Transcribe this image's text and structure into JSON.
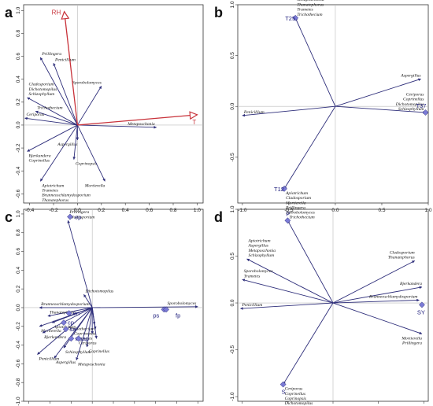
{
  "chart_data": [
    {
      "type": "scatter",
      "panel": "a",
      "xlim": [
        -0.45,
        1.05
      ],
      "ylim": [
        -0.68,
        1.05
      ],
      "xticks": [
        -0.4,
        -0.2,
        0.0,
        0.2,
        0.4,
        0.6,
        0.8,
        1.0
      ],
      "yticks": [
        -0.6,
        -0.4,
        -0.2,
        0.0,
        0.2,
        0.4,
        0.6,
        0.8,
        1.0
      ],
      "arrows": [
        {
          "label": "Penicillium",
          "x": -0.2,
          "y": 0.54
        },
        {
          "label": "Prillingera",
          "x": -0.31,
          "y": 0.59
        },
        {
          "label": "Sporobolomyces",
          "x": 0.2,
          "y": 0.34
        },
        {
          "label": "Cladosporium\nDichotomopilus\nSchizophyllum",
          "x": -0.42,
          "y": 0.24
        },
        {
          "label": "Trichothecium",
          "x": -0.35,
          "y": 0.12
        },
        {
          "label": "Ceriporus",
          "x": -0.44,
          "y": 0.06
        },
        {
          "label": "Metaposchonia",
          "x": 0.66,
          "y": -0.02
        },
        {
          "label": "Aspergillus",
          "x": 0.0,
          "y": -0.13
        },
        {
          "label": "Bjerkandera\nCoprinellus",
          "x": -0.42,
          "y": -0.23
        },
        {
          "label": "Coprinopsis",
          "x": -0.03,
          "y": -0.3
        },
        {
          "label": "Mortierella",
          "x": 0.23,
          "y": -0.49
        },
        {
          "label": "Apiotrichum\nTrametes\nBrunneoschlamydosporium\nThanatephorus",
          "x": -0.31,
          "y": -0.49
        }
      ],
      "env_arrows": [
        {
          "label": "RH",
          "x": -0.11,
          "y": 0.99
        },
        {
          "label": "T",
          "x": 1.0,
          "y": 0.09
        }
      ]
    },
    {
      "type": "scatter",
      "panel": "b",
      "xlim": [
        -1.05,
        1.0
      ],
      "ylim": [
        -0.95,
        1.0
      ],
      "xticks": [
        -1.0,
        -0.5,
        0.0,
        0.5,
        1.0
      ],
      "yticks": [
        -1.0,
        -0.5,
        0.0,
        0.5,
        1.0
      ],
      "points": [
        {
          "label": "T25",
          "x": -0.43,
          "y": 0.87
        },
        {
          "label": "T37",
          "x": 0.97,
          "y": -0.06
        },
        {
          "label": "T12",
          "x": -0.55,
          "y": -0.81
        }
      ],
      "arrows": [
        {
          "label": "Bjerkandera\nBrunneoschlamydosporium\nCoprinopsis\nMetaposchonia\nThanatephorus\nTrametes\nTrichothecium",
          "x": -0.43,
          "y": 0.87
        },
        {
          "label": "Aspergillus",
          "x": 0.92,
          "y": 0.27
        },
        {
          "label": "Penicillium",
          "x": -1.0,
          "y": -0.09
        },
        {
          "label": "Ceriporus\nCoprinellus\nDichotomopilus\nSchizophyllum",
          "x": 0.97,
          "y": -0.06
        },
        {
          "label": "Apiotrichum\nCladosporium\nMortierella\nPrillingera\nSporobolomyces",
          "x": -0.55,
          "y": -0.81
        }
      ]
    },
    {
      "type": "scatter",
      "panel": "c",
      "xlim": [
        -0.65,
        1.05
      ],
      "ylim": [
        -1.0,
        1.05
      ],
      "xticks": [
        -0.6,
        -0.4,
        -0.2,
        0.0,
        0.2,
        0.4,
        0.6,
        0.8,
        1.0
      ],
      "yticks": [
        -1.0,
        -0.8,
        -0.6,
        -0.4,
        -0.2,
        0.0,
        0.2,
        0.4,
        0.6,
        0.8,
        1.0
      ],
      "points": [
        {
          "label": "ep",
          "x": -0.21,
          "y": 0.97
        },
        {
          "label": "en",
          "x": -0.22,
          "y": -0.06
        },
        {
          "label": "cp",
          "x": -0.27,
          "y": -0.16
        },
        {
          "label": "sa",
          "x": -0.25,
          "y": -0.23
        },
        {
          "label": "ws",
          "x": -0.2,
          "y": -0.33
        },
        {
          "label": "ap",
          "x": -0.13,
          "y": -0.33
        },
        {
          "label": "ps",
          "x": 0.68,
          "y": -0.02
        },
        {
          "label": "fp",
          "x": 0.7,
          "y": -0.02
        }
      ],
      "arrows": [
        {
          "label": "Prillingera\nCladosporium",
          "x": -0.23,
          "y": 0.93
        },
        {
          "label": "Dichotomopilus",
          "x": -0.08,
          "y": 0.14
        },
        {
          "label": "Sporobolomyces",
          "x": 1.0,
          "y": 0.01
        },
        {
          "label": "Brunneoschlamydosporium",
          "x": -0.5,
          "y": 0.0
        },
        {
          "label": "Thanatephorus",
          "x": -0.42,
          "y": -0.09
        },
        {
          "label": "Apiotrichum",
          "x": -0.38,
          "y": -0.16
        },
        {
          "label": "Mortierella",
          "x": -0.5,
          "y": -0.2
        },
        {
          "label": "Bjerkandera",
          "x": -0.47,
          "y": -0.27
        },
        {
          "label": "Trichothecium",
          "x": 0.02,
          "y": -0.18
        },
        {
          "label": "Coprinopsis",
          "x": 0.03,
          "y": -0.23
        },
        {
          "label": "Trametes",
          "x": 0.0,
          "y": -0.28
        },
        {
          "label": "Ceriporus",
          "x": 0.04,
          "y": -0.33
        },
        {
          "label": "Coprinellus",
          "x": -0.05,
          "y": -0.42
        },
        {
          "label": "Schizophyllum",
          "x": -0.27,
          "y": -0.43
        },
        {
          "label": "Penicillium",
          "x": -0.52,
          "y": -0.5
        },
        {
          "label": "Aspergillus",
          "x": -0.36,
          "y": -0.54
        },
        {
          "label": "Metaposchonia",
          "x": -0.15,
          "y": -0.56
        }
      ]
    },
    {
      "type": "scatter",
      "panel": "d",
      "xlim": [
        -1.05,
        1.05
      ],
      "ylim": [
        -1.05,
        1.0
      ],
      "xticks": [
        -1.0,
        -0.5,
        0.0,
        0.5,
        1.0
      ],
      "yticks": [
        -1.0,
        -0.5,
        0.0,
        0.5,
        1.0
      ],
      "points": [
        {
          "label": "P",
          "x": -0.5,
          "y": 0.88
        },
        {
          "label": "SY",
          "x": 0.98,
          "y": -0.02
        },
        {
          "label": "S",
          "x": -0.55,
          "y": -0.87
        }
      ],
      "arrows": [
        {
          "label": "Trichothecium",
          "x": -0.5,
          "y": 0.88
        },
        {
          "label": "Apiotrichum\nAspergillus\nMetaposchonia\nSchizophyllum",
          "x": -0.95,
          "y": 0.47
        },
        {
          "label": "Cladosporium\nThanatephorus",
          "x": 0.9,
          "y": 0.45
        },
        {
          "label": "Sporobolomyces\nTrametes",
          "x": -1.0,
          "y": 0.25
        },
        {
          "label": "Bjerkandera",
          "x": 0.98,
          "y": 0.17
        },
        {
          "label": "Brunneoschlamydosporium",
          "x": 0.95,
          "y": 0.03
        },
        {
          "label": "Penicillium",
          "x": -1.02,
          "y": -0.06
        },
        {
          "label": "Mortierella\nPrillingera",
          "x": 0.98,
          "y": -0.33
        },
        {
          "label": "Ceriporus\nCoprinellus\nCoprinopsis\nDichotomopilus",
          "x": -0.55,
          "y": -0.87
        }
      ]
    }
  ],
  "panel_labels": [
    "a",
    "b",
    "c",
    "d"
  ]
}
